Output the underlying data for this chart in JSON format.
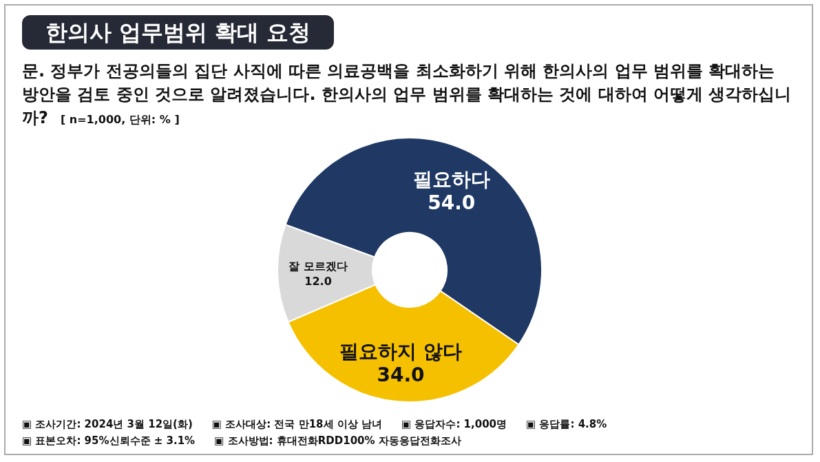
{
  "chart_data": {
    "type": "donut",
    "title": "한의사 업무범위 확대 요청",
    "subtitle": "문. 정부가 전공의들의 집단 사직에 따른 의료공백을 최소화하기 위해 한의사의 업무 범위를 확대하는 방안을 검토 중인 것으로 알려졌습니다. 한의사의 업무 범위를 확대하는 것에 대하여 어떻게 생각하십니까?",
    "categories": [
      "필요하다",
      "필요하지 않다",
      "잘 모르겠다"
    ],
    "values": [
      54.0,
      34.0,
      12.0
    ],
    "value_labels": [
      "54.0",
      "34.0",
      "12.0"
    ],
    "colors": [
      "#1f3864",
      "#f5c000",
      "#d9d9d9"
    ],
    "annotations": [
      "[ n=1,000, 단위: % ]",
      "▣ 조사기간: 2024년 3월 12일(화)",
      "▣ 조사대상: 전국 만18세 이상 남녀",
      "▣ 응답자수: 1,000명",
      "▣ 응답률: 4.8%",
      "▣ 표본오차: 95%신뢰수준 ± 3.1%",
      "▣ 조사방법: 휴대전화RDD100% 자동응답전화조사"
    ]
  }
}
